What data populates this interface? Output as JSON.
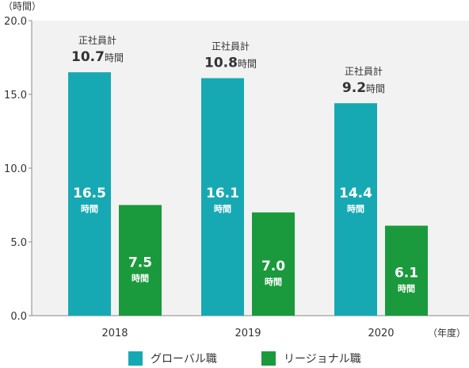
{
  "chart_data": {
    "type": "bar",
    "y_unit_label": "（時間）",
    "x_unit_label": "（年度）",
    "categories": [
      "2018",
      "2019",
      "2020"
    ],
    "ylim": [
      0,
      20
    ],
    "y_ticks": [
      "0.0",
      "5.0",
      "10.0",
      "15.0",
      "20.0"
    ],
    "grid": false,
    "legend_position": "bottom",
    "series": [
      {
        "name": "グローバル職",
        "color": "#17a9b3",
        "values": [
          16.5,
          16.1,
          14.4
        ],
        "value_labels": [
          "16.5",
          "16.1",
          "14.4"
        ]
      },
      {
        "name": "リージョナル職",
        "color": "#1a9a3c",
        "values": [
          7.5,
          7.0,
          6.1
        ],
        "value_labels": [
          "7.5",
          "7.0",
          "6.1"
        ]
      }
    ],
    "unit_text": "時間",
    "totals_caption": "正社員計",
    "totals": [
      10.7,
      10.8,
      9.2
    ],
    "total_labels": [
      "10.7",
      "10.8",
      "9.2"
    ]
  }
}
